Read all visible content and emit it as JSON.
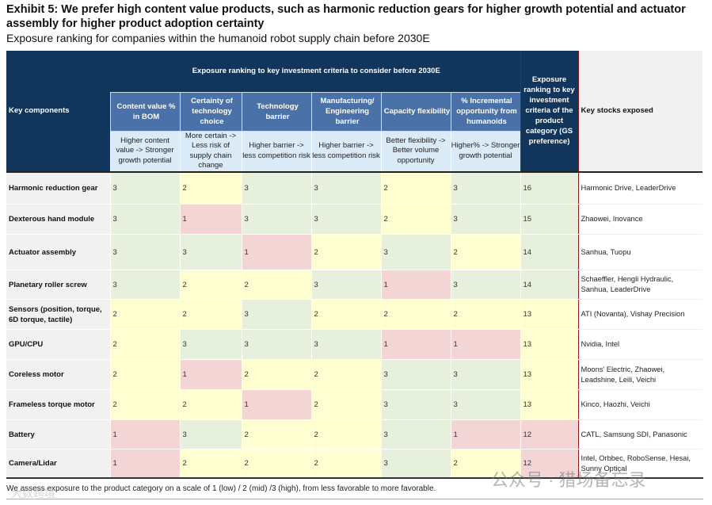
{
  "title": "Exhibit 5: We prefer high content value products, such as harmonic reduction gears for higher growth potential and actuator assembly for higher product adoption certainty",
  "subtitle": "Exposure ranking for companies within the humanoid robot supply chain before 2030E",
  "header": {
    "key_components": "Key components",
    "group": "Exposure ranking to key investment criteria to consider before 2030E",
    "exposure": "Exposure ranking to key investment criteria of the product category (GS preference)",
    "stocks": "Key stocks exposed",
    "criteria": [
      {
        "label": "Content value % in BOM",
        "desc": "Higher content value -> Stronger growth potential"
      },
      {
        "label": "Certainty of technology choice",
        "desc": "More certain -> Less risk of supply chain change"
      },
      {
        "label": "Technology barrier",
        "desc": "Higher barrier -> less competition risk"
      },
      {
        "label": "Manufacturing/ Engineering barrier",
        "desc": "Higher barrier -> less competition risk"
      },
      {
        "label": "Capacity flexibility",
        "desc": "Better flexibility -> Better volume opportunity"
      },
      {
        "label": "% Incremental opportunity from humanoids",
        "desc": "Higher% -> Stronger growth potential"
      }
    ]
  },
  "colors": {
    "score_3": "#e7f0dc",
    "score_2": "#fefed0",
    "score_1": "#f3d5d5",
    "header_dark": "#12355b",
    "header_mid": "#4a72a8",
    "header_light": "#daeaf7"
  },
  "rows": [
    {
      "component": "Harmonic reduction gear",
      "scores": [
        3,
        2,
        3,
        3,
        2,
        3
      ],
      "total": 16,
      "stocks": "Harmonic Drive, LeaderDrive"
    },
    {
      "component": "Dexterous hand module",
      "scores": [
        3,
        1,
        3,
        3,
        2,
        3
      ],
      "total": 15,
      "stocks": "Zhaowei, Inovance"
    },
    {
      "component": "Actuator assembly",
      "scores": [
        3,
        3,
        1,
        2,
        3,
        2
      ],
      "total": 14,
      "stocks": "Sanhua, Tuopu"
    },
    {
      "component": "Planetary roller screw",
      "scores": [
        3,
        2,
        2,
        3,
        1,
        3
      ],
      "total": 14,
      "stocks": "Schaeffler, Hengli Hydraulic, Sanhua, LeaderDrive"
    },
    {
      "component": "Sensors (position, torque, 6D torque, tactile)",
      "scores": [
        2,
        2,
        3,
        2,
        2,
        2
      ],
      "total": 13,
      "stocks": "ATI (Novanta), Vishay Precision"
    },
    {
      "component": "GPU/CPU",
      "scores": [
        2,
        3,
        3,
        3,
        1,
        1
      ],
      "total": 13,
      "stocks": "Nvidia, Intel"
    },
    {
      "component": "Coreless motor",
      "scores": [
        2,
        1,
        2,
        2,
        3,
        3
      ],
      "total": 13,
      "stocks": "Moons' Electric, Zhaowei, Leadshine, Leili, Veichi"
    },
    {
      "component": "Frameless torque motor",
      "scores": [
        2,
        2,
        1,
        2,
        3,
        3
      ],
      "total": 13,
      "stocks": "Kinco, Haozhi, Veichi"
    },
    {
      "component": "Battery",
      "scores": [
        1,
        3,
        2,
        2,
        3,
        1
      ],
      "total": 12,
      "stocks": "CATL, Samsung SDI, Panasonic"
    },
    {
      "component": "Camera/Lidar",
      "scores": [
        1,
        2,
        2,
        2,
        3,
        2
      ],
      "total": 12,
      "stocks": "Intel, Orbbec, RoboSense, Hesai, Sunny Optical"
    }
  ],
  "footnote": "We assess exposure to the product category on a scale of 1 (low) / 2 (mid) /3 (high), from less favorable to more favorable.",
  "watermark": "公众号 · 猎场备忘录",
  "watermark2": "大数跨境"
}
